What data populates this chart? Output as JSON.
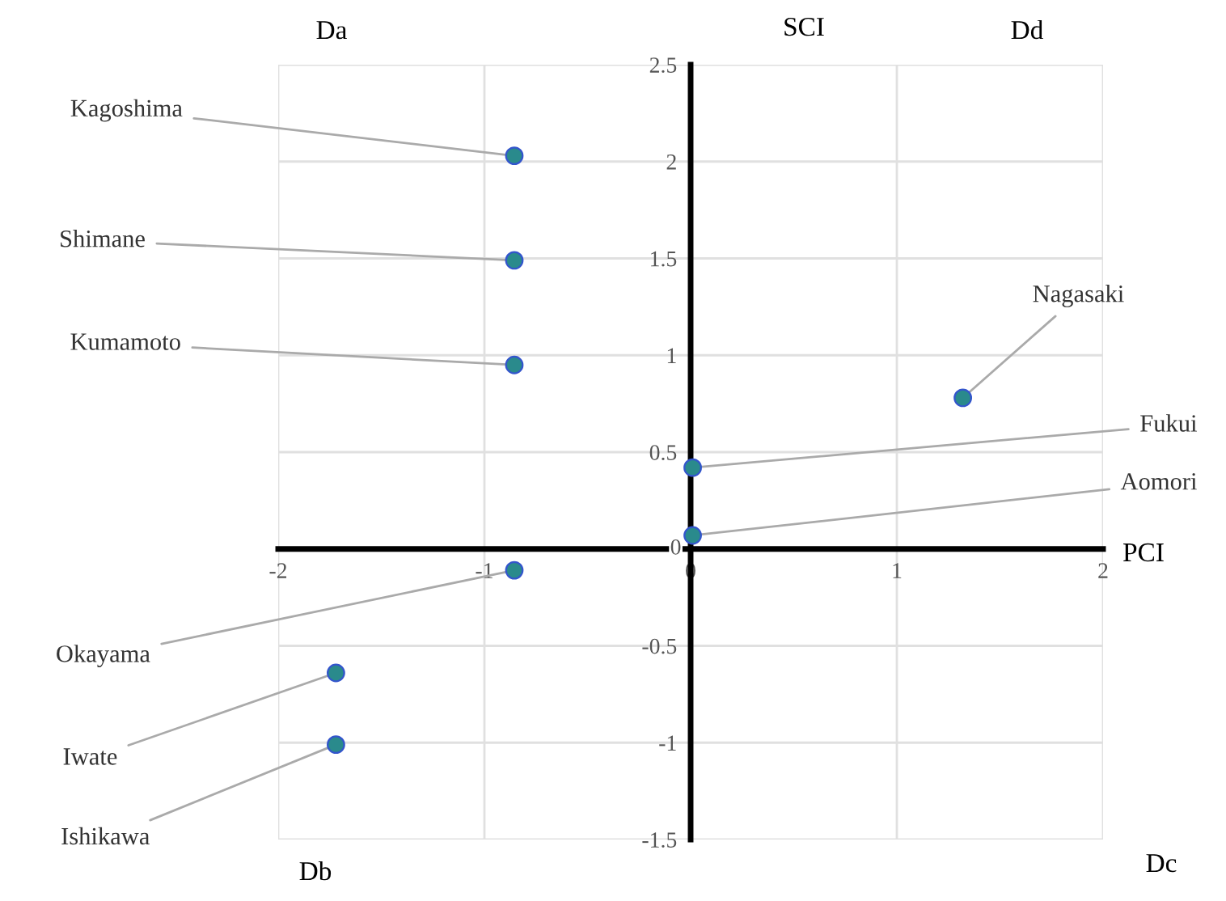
{
  "chart_data": {
    "type": "scatter",
    "xlabel": "PCI",
    "ylabel": "SCI",
    "x": [
      -0.855,
      -0.855,
      -0.855,
      1.32,
      0.01,
      0.01,
      -0.855,
      -1.72,
      -1.72
    ],
    "values": [
      2.03,
      1.49,
      0.95,
      0.78,
      0.42,
      0.07,
      -0.11,
      -0.64,
      -1.01
    ],
    "color": "#2a8a8c",
    "marker": "circle",
    "xlim": [
      -2,
      2
    ],
    "xticks": [
      -2,
      -1,
      0,
      1,
      2
    ],
    "ylim": [
      -1.5,
      2.5
    ],
    "yticks": [
      -1.5,
      -1,
      -0.5,
      0,
      0.5,
      1,
      1.5,
      2,
      2.5
    ],
    "grid": true,
    "annotations": [
      {
        "text": "Kagoshima",
        "x": -0.855,
        "y": 2.03
      },
      {
        "text": "Shimane",
        "x": -0.855,
        "y": 1.49
      },
      {
        "text": "Kumamoto",
        "x": -0.855,
        "y": 0.95
      },
      {
        "text": "Nagasaki",
        "x": 1.32,
        "y": 0.78
      },
      {
        "text": "Fukui",
        "x": 0.01,
        "y": 0.42
      },
      {
        "text": "Aomori",
        "x": 0.01,
        "y": 0.07
      },
      {
        "text": "Okayama",
        "x": -0.855,
        "y": -0.11
      },
      {
        "text": "Iwate",
        "x": -1.72,
        "y": -0.64
      },
      {
        "text": "Ishikawa",
        "x": -1.72,
        "y": -1.01
      },
      "Da",
      "Db",
      "Dc",
      "Dd"
    ]
  }
}
